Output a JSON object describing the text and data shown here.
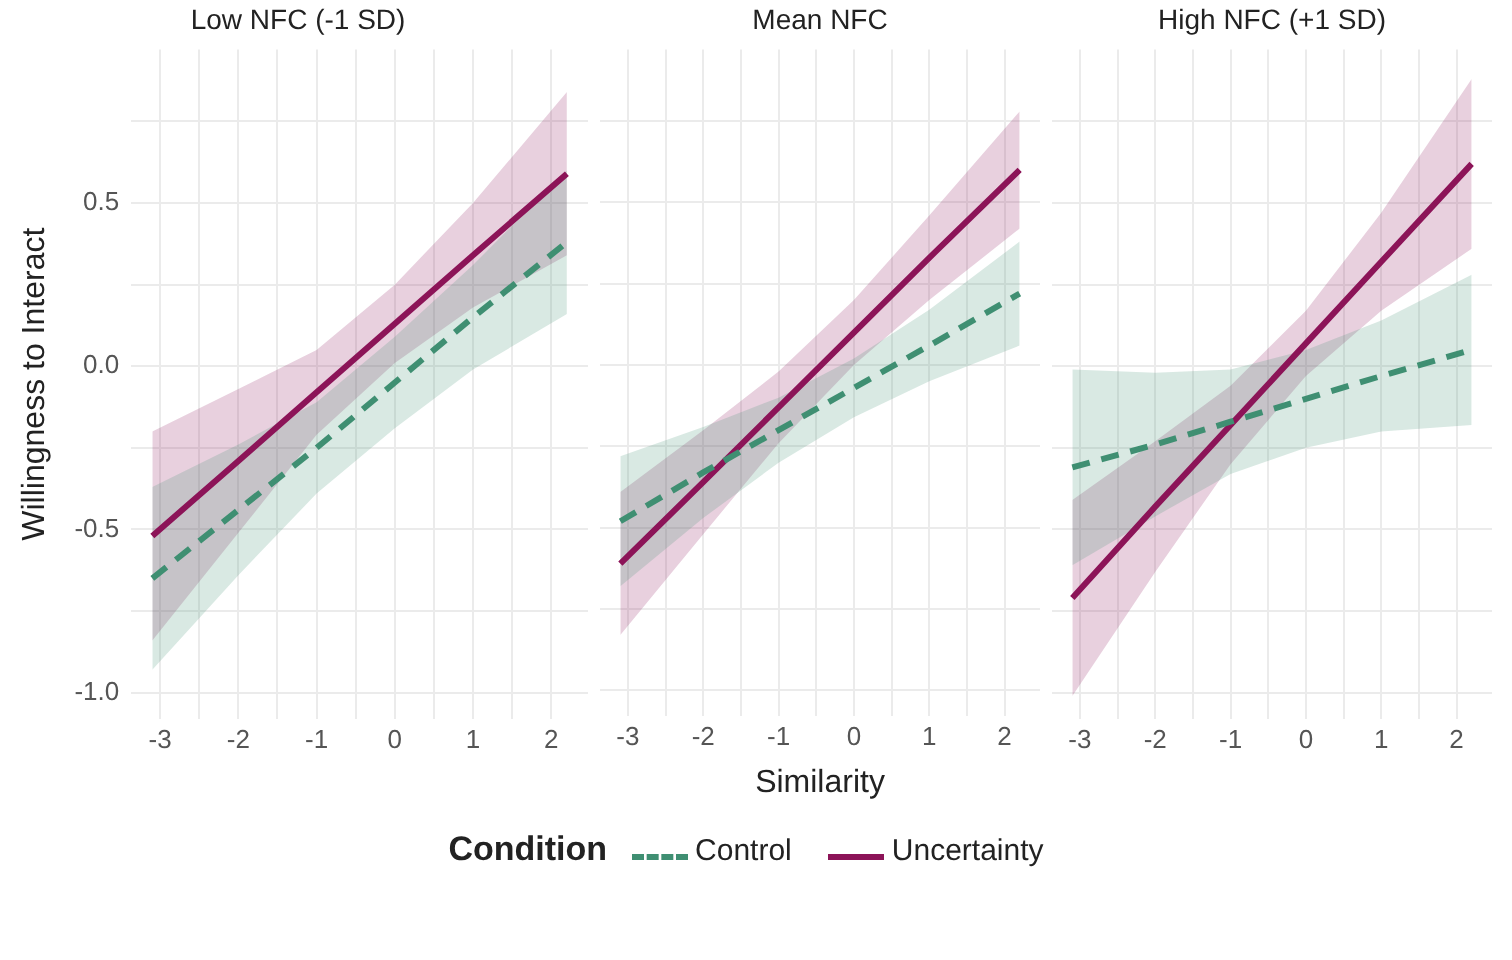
{
  "chart_data": [
    {
      "type": "line",
      "title": "Low NFC (-1 SD)",
      "ylabel": "Willingness to Interact",
      "legend": "bottom",
      "legend_title": "Condition",
      "x": [
        -3.1,
        -2,
        -1,
        0,
        1,
        2.2
      ],
      "xlim": [
        -3.37,
        2.47
      ],
      "ylim": [
        -1.08,
        0.97
      ],
      "xticks": [
        -3,
        {
          "value": -2.5,
          "label": null
        },
        -2,
        {
          "value": -1.5,
          "label": null
        },
        -1,
        {
          "value": -0.5,
          "label": null
        },
        0,
        {
          "value": 0.5,
          "label": null
        },
        1,
        {
          "value": 1.5,
          "label": null
        },
        2
      ],
      "yticks": [
        {
          "value": -1,
          "label": "-1.0"
        },
        {
          "value": -0.75,
          "label": null
        },
        {
          "value": -0.5,
          "label": "-0.5"
        },
        {
          "value": -0.25,
          "label": null
        },
        {
          "value": 0,
          "label": "0.0"
        },
        {
          "value": 0.25,
          "label": null
        },
        {
          "value": 0.5,
          "label": "0.5"
        },
        {
          "value": 0.75,
          "label": null
        }
      ],
      "grid": true,
      "marker": "none",
      "series": [
        {
          "name": "Control",
          "color": "#3f8f72",
          "line_style": "dashed",
          "values": [
            -0.65,
            -0.44,
            -0.25,
            -0.05,
            0.15,
            0.38
          ],
          "lower": [
            -0.93,
            -0.64,
            -0.39,
            -0.19,
            -0.01,
            0.16
          ],
          "upper": [
            -0.37,
            -0.24,
            -0.11,
            0.09,
            0.31,
            0.6
          ]
        },
        {
          "name": "Uncertainty",
          "color": "#8c1458",
          "line_style": "solid",
          "values": [
            -0.52,
            -0.29,
            -0.08,
            0.13,
            0.34,
            0.59
          ],
          "lower": [
            -0.84,
            -0.51,
            -0.21,
            0.01,
            0.18,
            0.34
          ],
          "upper": [
            -0.2,
            -0.07,
            0.05,
            0.25,
            0.5,
            0.84
          ]
        }
      ]
    },
    {
      "type": "line",
      "title": "Mean NFC",
      "xlabel": "Similarity",
      "tick_labels": "x",
      "x": [
        -3.1,
        -2,
        -1,
        0,
        1,
        2.2
      ],
      "xlim": [
        -3.37,
        2.47
      ],
      "ylim": [
        -1.08,
        0.97
      ],
      "xticks": [
        -3,
        {
          "value": -2.5,
          "label": null
        },
        -2,
        {
          "value": -1.5,
          "label": null
        },
        -1,
        {
          "value": -0.5,
          "label": null
        },
        0,
        {
          "value": 0.5,
          "label": null
        },
        1,
        {
          "value": 1.5,
          "label": null
        },
        2
      ],
      "yticks": [
        -1,
        -0.75,
        -0.5,
        -0.25,
        0,
        0.25,
        0.5,
        0.75
      ],
      "grid": true,
      "marker": "none",
      "series": [
        {
          "color": "#3f8f72",
          "line_style": "dashed",
          "values": [
            -0.48,
            -0.33,
            -0.2,
            -0.07,
            0.06,
            0.22
          ],
          "lower": [
            -0.68,
            -0.47,
            -0.3,
            -0.16,
            -0.05,
            0.06
          ],
          "upper": [
            -0.28,
            -0.19,
            -0.1,
            0.02,
            0.17,
            0.38
          ]
        },
        {
          "color": "#8c1458",
          "line_style": "solid",
          "values": [
            -0.61,
            -0.36,
            -0.13,
            0.1,
            0.33,
            0.6
          ],
          "lower": [
            -0.83,
            -0.52,
            -0.24,
            0.0,
            0.2,
            0.42
          ],
          "upper": [
            -0.39,
            -0.2,
            -0.02,
            0.2,
            0.46,
            0.78
          ]
        }
      ]
    },
    {
      "type": "line",
      "title": "High NFC (+1 SD)",
      "tick_labels": "x",
      "x": [
        -3.1,
        -2,
        -1,
        0,
        1,
        2.2
      ],
      "xlim": [
        -3.37,
        2.47
      ],
      "ylim": [
        -1.08,
        0.97
      ],
      "xticks": [
        -3,
        {
          "value": -2.5,
          "label": null
        },
        -2,
        {
          "value": -1.5,
          "label": null
        },
        -1,
        {
          "value": -0.5,
          "label": null
        },
        0,
        {
          "value": 0.5,
          "label": null
        },
        1,
        {
          "value": 1.5,
          "label": null
        },
        2
      ],
      "yticks": [
        -1,
        -0.75,
        -0.5,
        -0.25,
        0,
        0.25,
        0.5,
        0.75
      ],
      "grid": true,
      "marker": "none",
      "series": [
        {
          "color": "#3f8f72",
          "line_style": "dashed",
          "values": [
            -0.31,
            -0.24,
            -0.17,
            -0.1,
            -0.03,
            0.05
          ],
          "lower": [
            -0.61,
            -0.46,
            -0.33,
            -0.25,
            -0.2,
            -0.18
          ],
          "upper": [
            -0.01,
            -0.02,
            -0.01,
            0.05,
            0.14,
            0.28
          ]
        },
        {
          "color": "#8c1458",
          "line_style": "solid",
          "values": [
            -0.71,
            -0.43,
            -0.18,
            0.07,
            0.32,
            0.62
          ],
          "lower": [
            -1.01,
            -0.63,
            -0.3,
            -0.03,
            0.17,
            0.36
          ],
          "upper": [
            -0.41,
            -0.23,
            -0.06,
            0.17,
            0.47,
            0.88
          ]
        }
      ]
    }
  ]
}
